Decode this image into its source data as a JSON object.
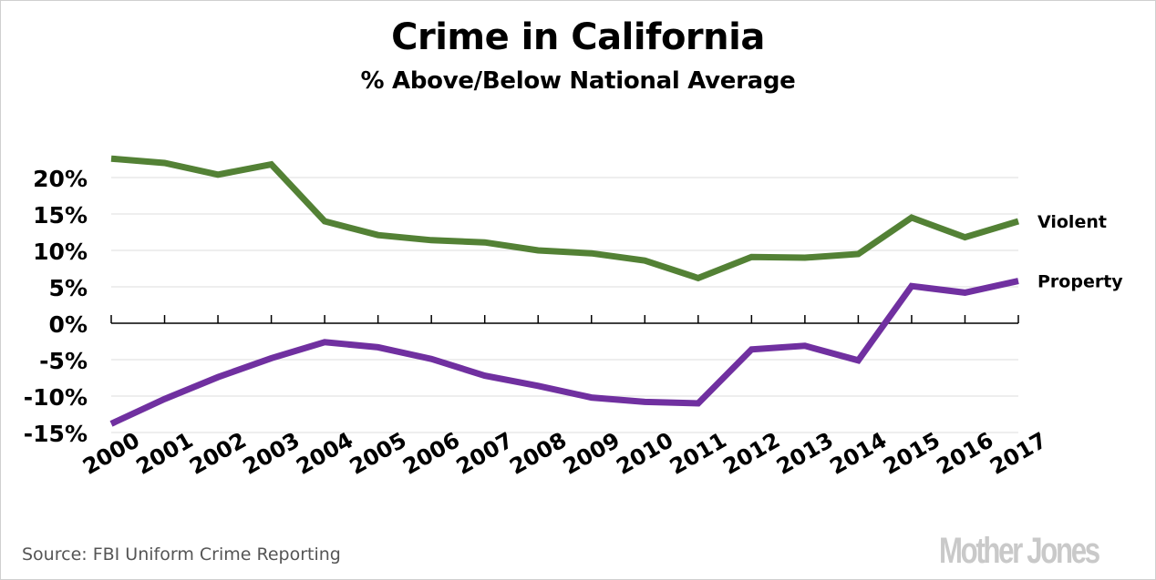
{
  "chart_data": {
    "type": "line",
    "title": "Crime in California",
    "subtitle": "% Above/Below National Average",
    "xlabel": "",
    "ylabel": "",
    "x": [
      "2000",
      "2001",
      "2002",
      "2003",
      "2004",
      "2005",
      "2006",
      "2007",
      "2008",
      "2009",
      "2010",
      "2011",
      "2012",
      "2013",
      "2014",
      "2015",
      "2016",
      "2017"
    ],
    "ylim": [
      -15,
      22.6
    ],
    "yticks": [
      20,
      15,
      10,
      5,
      0,
      -5,
      -10,
      -15
    ],
    "ytick_labels": [
      "20%",
      "15%",
      "10%",
      "5%",
      "0%",
      "-5%",
      "-10%",
      "-15%"
    ],
    "grid": true,
    "legend": "right (inline labels at line ends)",
    "series": [
      {
        "name": "Violent",
        "color": "#538135",
        "values": [
          22.6,
          22.0,
          20.4,
          21.8,
          14.0,
          12.1,
          11.4,
          11.1,
          10.0,
          9.6,
          8.6,
          6.2,
          9.1,
          9.0,
          9.5,
          14.5,
          11.8,
          14.0
        ]
      },
      {
        "name": "Property",
        "color": "#7030a0",
        "values": [
          -13.8,
          -10.4,
          -7.4,
          -4.8,
          -2.6,
          -3.3,
          -4.9,
          -7.2,
          -8.6,
          -10.2,
          -10.8,
          -11.0,
          -3.6,
          -3.1,
          -5.1,
          5.1,
          4.2,
          5.8
        ]
      }
    ]
  },
  "footer": {
    "source": "Source: FBI Uniform Crime Reporting",
    "logo": "Mother Jones"
  }
}
